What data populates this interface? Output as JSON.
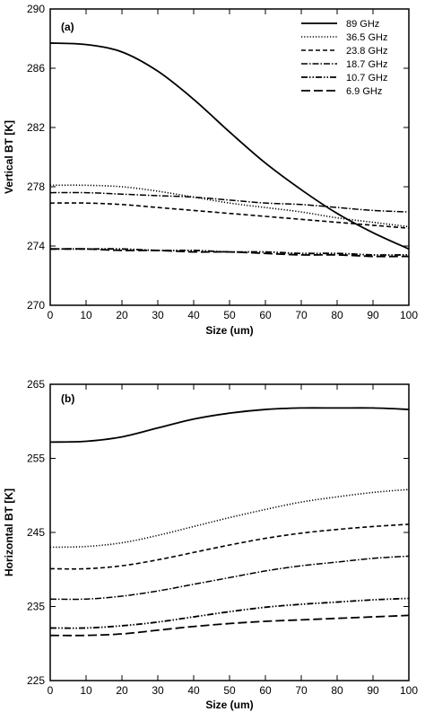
{
  "chart_data": [
    {
      "type": "line",
      "panel_label": "(a)",
      "xlabel": "Size (um)",
      "ylabel": "Vertical BT [K]",
      "xlim": [
        0,
        100
      ],
      "ylim": [
        270,
        290
      ],
      "x_ticks": [
        0,
        10,
        20,
        30,
        40,
        50,
        60,
        70,
        80,
        90,
        100
      ],
      "y_ticks": [
        270,
        274,
        278,
        282,
        286,
        290
      ],
      "legend_position": "top-right",
      "x": [
        0,
        10,
        20,
        30,
        40,
        50,
        60,
        70,
        80,
        90,
        100
      ],
      "series": [
        {
          "name": "89    GHz",
          "style": "solid",
          "values": [
            287.7,
            287.6,
            287.1,
            285.8,
            283.9,
            281.7,
            279.6,
            277.8,
            276.2,
            274.9,
            273.8
          ]
        },
        {
          "name": "36.5 GHz",
          "style": "dotted",
          "values": [
            278.1,
            278.1,
            278.0,
            277.7,
            277.3,
            276.9,
            276.6,
            276.3,
            275.9,
            275.6,
            275.3
          ]
        },
        {
          "name": "23.8 GHz",
          "style": "dashed",
          "values": [
            276.9,
            276.9,
            276.8,
            276.6,
            276.4,
            276.2,
            276.0,
            275.8,
            275.6,
            275.4,
            275.2
          ]
        },
        {
          "name": "18.7 GHz",
          "style": "dashdot",
          "values": [
            277.6,
            277.6,
            277.5,
            277.4,
            277.3,
            277.1,
            276.9,
            276.8,
            276.6,
            276.4,
            276.3
          ]
        },
        {
          "name": "10.7 GHz",
          "style": "dashdotdot",
          "values": [
            273.8,
            273.8,
            273.8,
            273.7,
            273.7,
            273.6,
            273.6,
            273.5,
            273.5,
            273.4,
            273.4
          ]
        },
        {
          "name": "6.9  GHz",
          "style": "longdash",
          "values": [
            273.8,
            273.8,
            273.7,
            273.7,
            273.6,
            273.6,
            273.5,
            273.4,
            273.4,
            273.3,
            273.3
          ]
        }
      ]
    },
    {
      "type": "line",
      "panel_label": "(b)",
      "xlabel": "Size (um)",
      "ylabel": "Horizontal BT [K]",
      "xlim": [
        0,
        100
      ],
      "ylim": [
        225,
        265
      ],
      "x_ticks": [
        0,
        10,
        20,
        30,
        40,
        50,
        60,
        70,
        80,
        90,
        100
      ],
      "y_ticks": [
        225,
        235,
        245,
        255,
        265
      ],
      "x": [
        0,
        10,
        20,
        30,
        40,
        50,
        60,
        70,
        80,
        90,
        100
      ],
      "series": [
        {
          "style": "solid",
          "values": [
            257.2,
            257.3,
            257.9,
            259.1,
            260.3,
            261.1,
            261.6,
            261.8,
            261.8,
            261.8,
            261.6
          ]
        },
        {
          "style": "dotted",
          "values": [
            243.0,
            243.1,
            243.6,
            244.6,
            245.8,
            247.0,
            248.1,
            249.1,
            249.8,
            250.4,
            250.8
          ]
        },
        {
          "style": "dashed",
          "values": [
            240.1,
            240.1,
            240.5,
            241.3,
            242.3,
            243.3,
            244.2,
            244.9,
            245.4,
            245.8,
            246.1
          ]
        },
        {
          "style": "dashdot",
          "values": [
            236.0,
            236.0,
            236.4,
            237.1,
            238.0,
            238.9,
            239.8,
            240.5,
            241.0,
            241.5,
            241.8
          ]
        },
        {
          "style": "dashdotdot",
          "values": [
            232.1,
            232.1,
            232.4,
            232.9,
            233.6,
            234.3,
            234.9,
            235.3,
            235.6,
            235.9,
            236.1
          ]
        },
        {
          "style": "longdash",
          "values": [
            231.1,
            231.1,
            231.3,
            231.8,
            232.3,
            232.7,
            233.0,
            233.2,
            233.4,
            233.6,
            233.8
          ]
        }
      ]
    }
  ]
}
